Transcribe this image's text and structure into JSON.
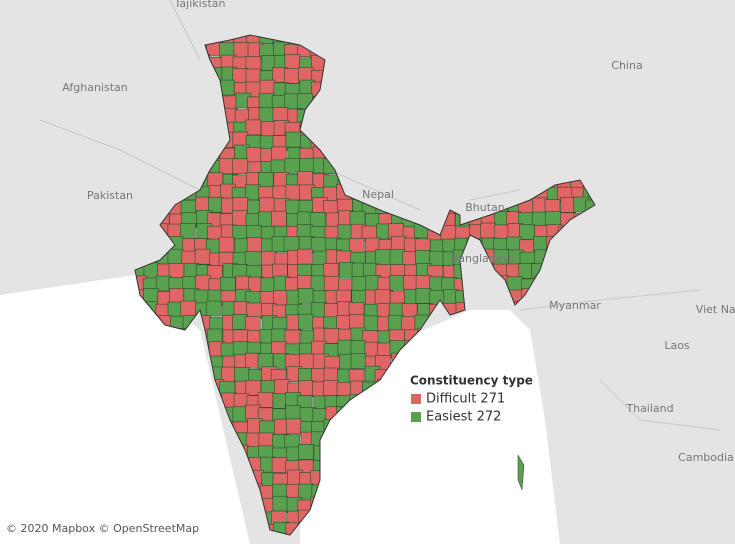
{
  "map": {
    "places": [
      {
        "name": "Tajikistan"
      },
      {
        "name": "Afghanistan"
      },
      {
        "name": "Pakistan"
      },
      {
        "name": "Nepal"
      },
      {
        "name": "Bhutan"
      },
      {
        "name": "Bangladesh"
      },
      {
        "name": "China"
      },
      {
        "name": "Myanmar"
      },
      {
        "name": "Viet Nar"
      },
      {
        "name": "Laos"
      },
      {
        "name": "Thailand"
      },
      {
        "name": "Cambodia"
      }
    ],
    "legend": {
      "title": "Constituency type",
      "items": [
        {
          "label": "Difficult 271",
          "color": "#e06666"
        },
        {
          "label": "Easiest 272",
          "color": "#59a14f"
        }
      ]
    },
    "attribution": "© 2020 Mapbox © OpenStreetMap"
  }
}
